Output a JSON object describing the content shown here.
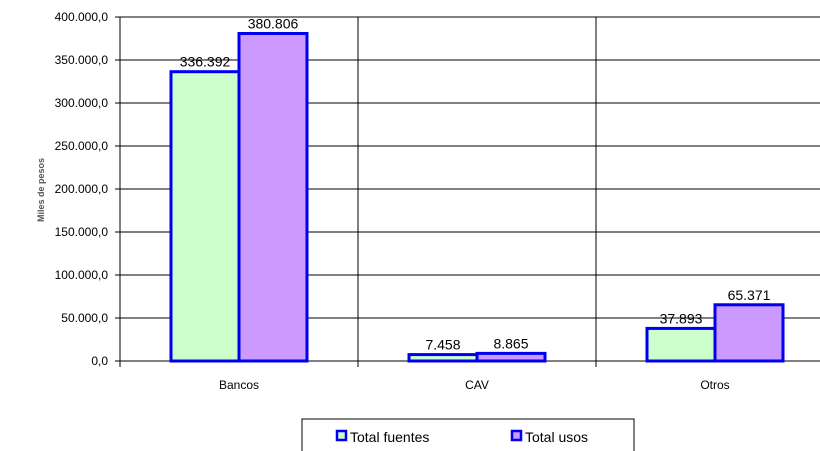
{
  "chart_data": {
    "type": "bar",
    "ylabel": "Miles de pesos",
    "ylim": [
      0,
      400000
    ],
    "yticks": [
      0,
      50000,
      100000,
      150000,
      200000,
      250000,
      300000,
      350000,
      400000
    ],
    "ytick_labels": [
      "0,0",
      "50.000,0",
      "100.000,0",
      "150.000,0",
      "200.000,0",
      "250.000,0",
      "300.000,0",
      "350.000,0",
      "400.000,0"
    ],
    "categories": [
      "Bancos",
      "CAV",
      "Otros"
    ],
    "series": [
      {
        "name": "Total fuentes",
        "values": [
          336392,
          7458,
          37893
        ],
        "labels": [
          "336.392",
          "7.458",
          "37.893"
        ],
        "color": "#ccffcc"
      },
      {
        "name": "Total usos",
        "values": [
          380806,
          8865,
          65371
        ],
        "labels": [
          "380.806",
          "8.865",
          "65.371"
        ],
        "color": "#cc99ff"
      }
    ],
    "bar_outline_color": "#0000ee",
    "grid": "vertical-category-dividers",
    "legend": "bottom-center"
  }
}
